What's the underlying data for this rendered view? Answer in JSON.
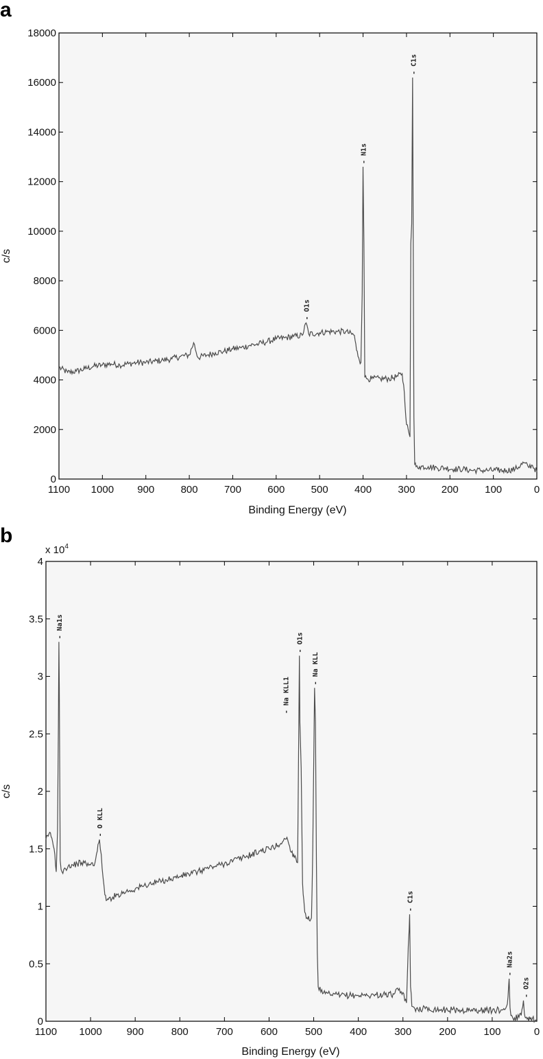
{
  "chart_data": [
    {
      "panel": "a",
      "type": "line",
      "xlabel": "Binding Energy (eV)",
      "ylabel": "c/s",
      "xlim": [
        1100,
        0
      ],
      "ylim": [
        0,
        18000
      ],
      "x_reversed": true,
      "xticks": [
        1100,
        1000,
        900,
        800,
        700,
        600,
        500,
        400,
        300,
        200,
        100,
        0
      ],
      "yticks": [
        0,
        2000,
        4000,
        6000,
        8000,
        10000,
        12000,
        14000,
        16000,
        18000
      ],
      "ytick_labels": [
        "0",
        "2000",
        "4000",
        "6000",
        "8000",
        "10000",
        "12000",
        "14000",
        "16000",
        "18000"
      ],
      "grid": false,
      "line_color": "#555555",
      "series": [
        {
          "x": [
            1100,
            1080,
            1060,
            1040,
            1020,
            1000,
            980,
            960,
            940,
            920,
            900,
            880,
            860,
            840,
            820,
            800,
            790,
            780,
            760,
            740,
            720,
            700,
            680,
            660,
            640,
            620,
            600,
            580,
            560,
            540,
            531,
            525,
            500,
            480,
            460,
            440,
            420,
            415,
            410,
            405,
            402,
            400,
            398,
            396,
            392,
            380,
            360,
            340,
            320,
            310,
            305,
            300,
            296,
            292,
            290,
            288,
            286,
            285,
            283,
            281,
            278,
            270,
            250,
            230,
            210,
            190,
            170,
            150,
            130,
            110,
            90,
            70,
            50,
            30,
            20,
            10,
            0
          ],
          "y": [
            4500,
            4300,
            4350,
            4450,
            4550,
            4600,
            4650,
            4600,
            4650,
            4700,
            4700,
            4750,
            4800,
            4850,
            4950,
            5000,
            5500,
            4900,
            5000,
            5100,
            5150,
            5250,
            5300,
            5400,
            5450,
            5550,
            5650,
            5700,
            5750,
            5800,
            6300,
            5850,
            5900,
            5950,
            5950,
            5950,
            5800,
            5200,
            4900,
            4700,
            7500,
            12600,
            9500,
            4100,
            4050,
            4050,
            4050,
            4050,
            4150,
            4250,
            3500,
            2200,
            2000,
            1700,
            9500,
            10300,
            16200,
            12000,
            2500,
            600,
            500,
            500,
            500,
            450,
            450,
            400,
            400,
            350,
            350,
            350,
            350,
            350,
            400,
            650,
            500,
            550,
            300
          ]
        }
      ],
      "annotations": [
        {
          "text": "O1s",
          "x": 531,
          "y": 6300
        },
        {
          "text": "N1s",
          "x": 400,
          "y": 12600
        },
        {
          "text": "C1s",
          "x": 285,
          "y": 16200
        }
      ]
    },
    {
      "panel": "b",
      "type": "line",
      "xlabel": "Binding Energy (eV)",
      "ylabel": "c/s",
      "multiplier": "x 10",
      "multiplier_exp": "4",
      "xlim": [
        1100,
        0
      ],
      "ylim": [
        0,
        40000
      ],
      "x_reversed": true,
      "xticks": [
        1100,
        1000,
        900,
        800,
        700,
        600,
        500,
        400,
        300,
        200,
        100,
        0
      ],
      "yticks": [
        0,
        5000,
        10000,
        15000,
        20000,
        25000,
        30000,
        35000,
        40000
      ],
      "ytick_labels": [
        "0",
        "0.5",
        "1",
        "1.5",
        "2",
        "2.5",
        "3",
        "3.5",
        "4"
      ],
      "grid": false,
      "line_color": "#555555",
      "series": [
        {
          "x": [
            1100,
            1095,
            1090,
            1085,
            1080,
            1077,
            1074,
            1072,
            1071,
            1070,
            1068,
            1066,
            1064,
            1060,
            1050,
            1040,
            1030,
            1020,
            1010,
            1000,
            990,
            985,
            980,
            976,
            972,
            968,
            965,
            960,
            950,
            940,
            920,
            900,
            880,
            860,
            840,
            820,
            800,
            780,
            760,
            740,
            720,
            700,
            680,
            660,
            640,
            620,
            600,
            580,
            570,
            560,
            550,
            545,
            540,
            536,
            532,
            531,
            528,
            525,
            522,
            520,
            515,
            510,
            505,
            502,
            500,
            498,
            496,
            494,
            492,
            490,
            480,
            460,
            440,
            420,
            400,
            380,
            360,
            340,
            320,
            310,
            300,
            296,
            292,
            290,
            288,
            286,
            285,
            283,
            280,
            275,
            270,
            250,
            230,
            210,
            190,
            170,
            150,
            130,
            110,
            90,
            80,
            70,
            66,
            63,
            62,
            60,
            58,
            55,
            50,
            40,
            35,
            30,
            28,
            25,
            20,
            15,
            10,
            0
          ],
          "y": [
            15800,
            16100,
            16400,
            15600,
            14500,
            13000,
            16500,
            26000,
            33000,
            29000,
            14000,
            13200,
            13000,
            13200,
            13500,
            13600,
            13700,
            13800,
            13700,
            13600,
            13800,
            14800,
            15800,
            14500,
            12500,
            11000,
            10500,
            10600,
            10800,
            11000,
            11300,
            11500,
            11800,
            12000,
            12200,
            12400,
            12600,
            12800,
            13000,
            13300,
            13500,
            13700,
            14000,
            14200,
            14500,
            14800,
            15000,
            15300,
            15600,
            16000,
            14700,
            14500,
            14200,
            13800,
            31800,
            26000,
            22000,
            12000,
            10500,
            9500,
            9000,
            8800,
            9000,
            15000,
            22000,
            29000,
            26000,
            14000,
            6000,
            3000,
            2400,
            2300,
            2250,
            2250,
            2250,
            2250,
            2300,
            2300,
            2350,
            2700,
            2500,
            1800,
            1600,
            4000,
            6500,
            8000,
            9300,
            3000,
            1300,
            1200,
            1100,
            1100,
            1050,
            1000,
            1000,
            950,
            950,
            950,
            950,
            950,
            1000,
            1100,
            1500,
            3200,
            3700,
            1200,
            500,
            400,
            300,
            350,
            500,
            1800,
            700,
            300,
            300,
            200,
            250,
            100
          ]
        }
      ],
      "annotations": [
        {
          "text": "Na1s",
          "x": 1071,
          "y": 33000
        },
        {
          "text": "O KLL",
          "x": 980,
          "y": 15800
        },
        {
          "text": "Na KLL1",
          "x": 563,
          "y": 26500
        },
        {
          "text": "O1s",
          "x": 532,
          "y": 31800
        },
        {
          "text": "Na KLL",
          "x": 498,
          "y": 29000
        },
        {
          "text": "C1s",
          "x": 285,
          "y": 9300
        },
        {
          "text": "Na2s",
          "x": 62,
          "y": 3700
        },
        {
          "text": "O2s",
          "x": 25,
          "y": 1800
        }
      ]
    }
  ]
}
